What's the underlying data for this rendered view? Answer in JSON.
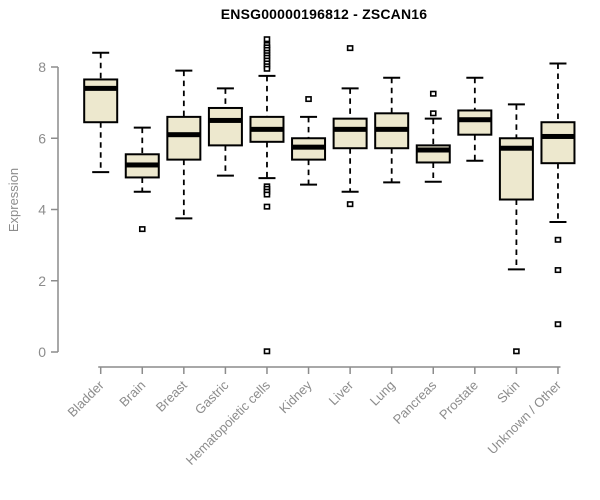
{
  "chart_data": {
    "type": "boxplot",
    "title": "ENSG00000196812 - ZSCAN16",
    "ylabel": "Expression",
    "xlabel": "",
    "yticks": [
      0,
      2,
      4,
      6,
      8
    ],
    "ylim": [
      0,
      8.9
    ],
    "grid": false,
    "legend": "none",
    "colors": {
      "box_fill": "#EDE8CE",
      "box_stroke": "#000000",
      "median": "#000000",
      "whisker": "#000000",
      "outlier_fill": "#ffffff",
      "axis": "#8C8C8C",
      "tick_label": "#8C8C8C",
      "title": "#000000",
      "background": "#ffffff"
    },
    "categories": [
      "Bladder",
      "Brain",
      "Breast",
      "Gastric",
      "Hematopoietic cells",
      "Kidney",
      "Liver",
      "Lung",
      "Pancreas",
      "Prostate",
      "Skin",
      "Unknown / Other"
    ],
    "series": [
      {
        "name": "Bladder",
        "whislo": 5.05,
        "q1": 6.45,
        "med": 7.4,
        "q3": 7.65,
        "whishi": 8.4,
        "outliers": []
      },
      {
        "name": "Brain",
        "whislo": 4.5,
        "q1": 4.9,
        "med": 5.25,
        "q3": 5.55,
        "whishi": 6.3,
        "outliers": [
          3.45
        ]
      },
      {
        "name": "Breast",
        "whislo": 3.75,
        "q1": 5.4,
        "med": 6.1,
        "q3": 6.6,
        "whishi": 7.9,
        "outliers": []
      },
      {
        "name": "Gastric",
        "whislo": 4.95,
        "q1": 5.8,
        "med": 6.5,
        "q3": 6.85,
        "whishi": 7.4,
        "outliers": []
      },
      {
        "name": "Hematopoietic cells",
        "whislo": 4.88,
        "q1": 5.9,
        "med": 6.25,
        "q3": 6.6,
        "whishi": 7.75,
        "outliers": [
          8.78,
          8.62,
          8.55,
          8.48,
          8.4,
          8.33,
          8.26,
          8.18,
          8.1,
          8.02,
          7.95,
          4.65,
          4.58,
          4.5,
          4.42,
          4.08,
          0.02
        ]
      },
      {
        "name": "Kidney",
        "whislo": 4.7,
        "q1": 5.4,
        "med": 5.75,
        "q3": 6.0,
        "whishi": 6.6,
        "outliers": [
          7.1
        ]
      },
      {
        "name": "Liver",
        "whislo": 4.5,
        "q1": 5.72,
        "med": 6.25,
        "q3": 6.55,
        "whishi": 7.4,
        "outliers": [
          8.53,
          4.15
        ]
      },
      {
        "name": "Lung",
        "whislo": 4.76,
        "q1": 5.72,
        "med": 6.25,
        "q3": 6.7,
        "whishi": 7.7,
        "outliers": []
      },
      {
        "name": "Pancreas",
        "whislo": 4.78,
        "q1": 5.32,
        "med": 5.67,
        "q3": 5.8,
        "whishi": 6.55,
        "outliers": [
          7.25,
          6.7
        ]
      },
      {
        "name": "Prostate",
        "whislo": 5.37,
        "q1": 6.1,
        "med": 6.52,
        "q3": 6.78,
        "whishi": 7.7,
        "outliers": []
      },
      {
        "name": "Skin",
        "whislo": 2.32,
        "q1": 4.28,
        "med": 5.72,
        "q3": 6.0,
        "whishi": 6.95,
        "outliers": [
          0.02
        ]
      },
      {
        "name": "Unknown / Other",
        "whislo": 3.65,
        "q1": 5.3,
        "med": 6.05,
        "q3": 6.45,
        "whishi": 8.1,
        "outliers": [
          3.15,
          2.3,
          0.78
        ]
      }
    ]
  }
}
